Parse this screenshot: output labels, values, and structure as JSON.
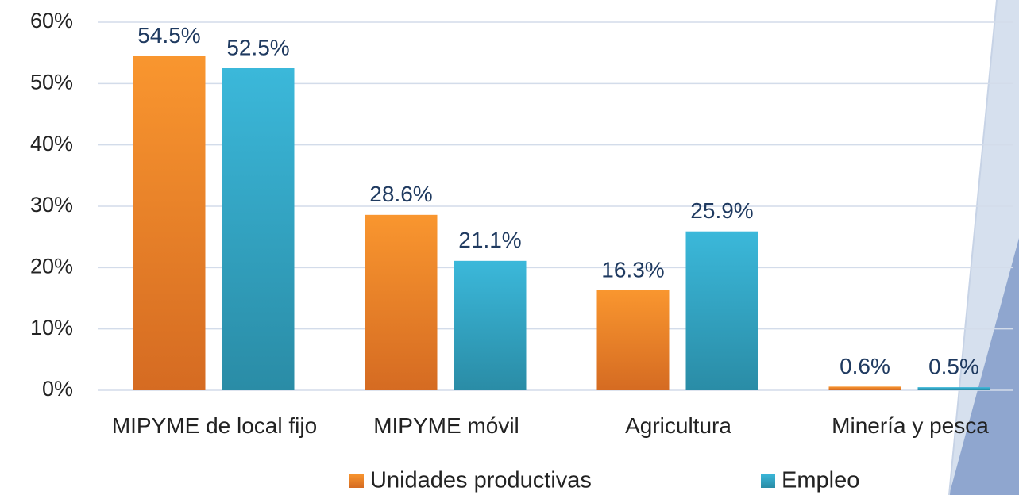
{
  "chart_data": {
    "type": "bar",
    "categories": [
      "MIPYME de local fijo",
      "MIPYME móvil",
      "Agricultura",
      "Minería y pesca"
    ],
    "series": [
      {
        "name": "Unidades productivas",
        "color": "#f7922e",
        "values": [
          54.5,
          28.6,
          16.3,
          0.6
        ],
        "value_labels": [
          "54.5%",
          "28.6%",
          "16.3%",
          "0.6%"
        ]
      },
      {
        "name": "Empleo",
        "color": "#34b3d6",
        "values": [
          52.5,
          21.1,
          25.9,
          0.5
        ],
        "value_labels": [
          "52.5%",
          "21.1%",
          "25.9%",
          "0.5%"
        ]
      }
    ],
    "ylim": [
      0,
      60
    ],
    "yticks": [
      {
        "value": 0,
        "label": "0%"
      },
      {
        "value": 10,
        "label": "10%"
      },
      {
        "value": 20,
        "label": "20%"
      },
      {
        "value": 30,
        "label": "30%"
      },
      {
        "value": 40,
        "label": "40%"
      },
      {
        "value": 50,
        "label": "50%"
      },
      {
        "value": 60,
        "label": "60%"
      }
    ],
    "grid": true,
    "legend": "bottom"
  }
}
